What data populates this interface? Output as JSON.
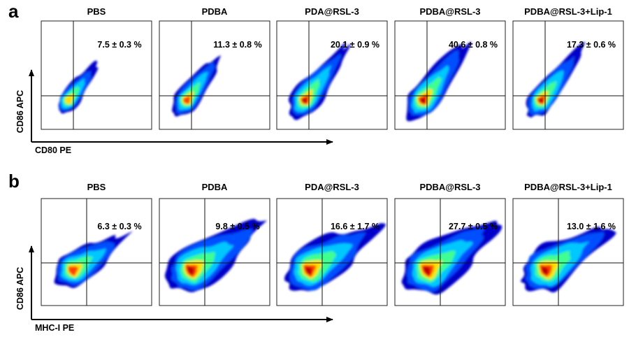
{
  "chart_data": [
    {
      "type": "scatter",
      "panel_label": "a",
      "xlabel": "CD80 PE",
      "ylabel": "CD86 APC",
      "groups": [
        "PBS",
        "PDBA",
        "PDA@RSL-3",
        "PDBA@RSL-3",
        "PDBA@RSL-3+Lip-1"
      ],
      "labels": [
        "7.5 ± 0.3 %",
        "11.3 ± 0.8 %",
        "20.1 ± 0.9 %",
        "40.6 ± 0.8 %",
        "17.3 ± 0.6 %"
      ],
      "values": [
        7.5,
        11.3,
        20.1,
        40.6,
        17.3
      ],
      "errors": [
        0.3,
        0.8,
        0.9,
        0.8,
        0.6
      ],
      "spread": [
        0.38,
        0.62,
        0.82,
        0.95,
        0.72
      ],
      "palette": [
        "#0000c8",
        "#0050ff",
        "#00c8ff",
        "#40ff90",
        "#ffe000",
        "#ff4000",
        "#c00000"
      ]
    },
    {
      "type": "scatter",
      "panel_label": "b",
      "xlabel": "MHC-I PE",
      "ylabel": "CD86 APC",
      "groups": [
        "PBS",
        "PDBA",
        "PDA@RSL-3",
        "PDBA@RSL-3",
        "PDBA@RSL-3+Lip-1"
      ],
      "labels": [
        "6.3 ± 0.3 %",
        "9.8 ± 0.5 %",
        "16.6 ± 1.7 %",
        "27.7 ± 0.5 %",
        "13.0 ± 1.6 %"
      ],
      "values": [
        6.3,
        9.8,
        16.6,
        27.7,
        13.0
      ],
      "errors": [
        0.3,
        0.5,
        1.7,
        0.5,
        1.6
      ],
      "spread": [
        0.5,
        0.9,
        0.9,
        0.95,
        0.88
      ],
      "palette": [
        "#0000c8",
        "#0050ff",
        "#00c8ff",
        "#40ff90",
        "#ffe000",
        "#ff4000",
        "#c00000"
      ]
    }
  ]
}
